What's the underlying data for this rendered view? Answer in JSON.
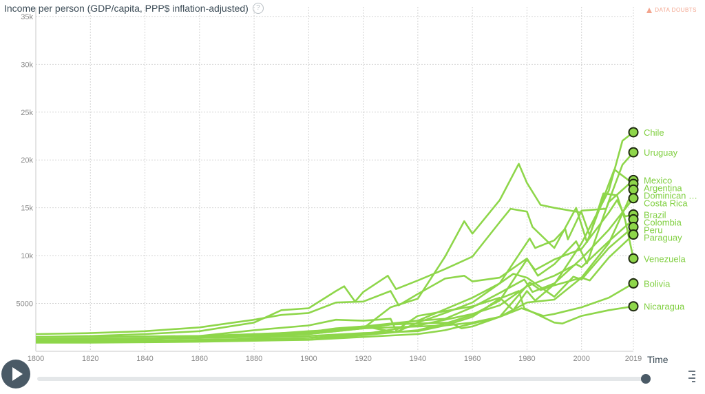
{
  "header": {
    "title": "Income per person (GDP/capita, PPP$ inflation-adjusted)",
    "help_icon": "?",
    "data_doubts": "DATA DOUBTS"
  },
  "axis": {
    "time_label": "Time"
  },
  "colors": {
    "line": "#8ed64a",
    "marker": "#8ed64a",
    "marker_stroke": "#1f2a10",
    "grid": "#d4d4d4",
    "axis_text": "#888888",
    "label": "#7fcf3f"
  },
  "chart_data": {
    "type": "line",
    "title": "Income per person (GDP/capita, PPP$ inflation-adjusted)",
    "xlabel": "Time",
    "ylabel": "",
    "xlim": [
      1800,
      2019
    ],
    "ylim": [
      0,
      36000
    ],
    "x_ticks": [
      1800,
      1820,
      1840,
      1860,
      1880,
      1900,
      1920,
      1940,
      1960,
      1980,
      2000,
      2019
    ],
    "y_ticks": [
      5000,
      10000,
      15000,
      20000,
      25000,
      30000,
      35000
    ],
    "y_tick_labels": [
      "5000",
      "10k",
      "15k",
      "20k",
      "25k",
      "30k",
      "35k"
    ],
    "grid": true,
    "series": [
      {
        "name": "Chile",
        "points": [
          [
            1800,
            1100
          ],
          [
            1820,
            1150
          ],
          [
            1840,
            1300
          ],
          [
            1860,
            1600
          ],
          [
            1880,
            2200
          ],
          [
            1900,
            2700
          ],
          [
            1910,
            3300
          ],
          [
            1920,
            3200
          ],
          [
            1930,
            3400
          ],
          [
            1932,
            2200
          ],
          [
            1940,
            3700
          ],
          [
            1950,
            4200
          ],
          [
            1960,
            4700
          ],
          [
            1970,
            5600
          ],
          [
            1975,
            4300
          ],
          [
            1980,
            6300
          ],
          [
            1983,
            5300
          ],
          [
            1990,
            7000
          ],
          [
            2000,
            11300
          ],
          [
            2010,
            16800
          ],
          [
            2015,
            22000
          ],
          [
            2019,
            22900
          ]
        ]
      },
      {
        "name": "Uruguay",
        "points": [
          [
            1800,
            1800
          ],
          [
            1820,
            1900
          ],
          [
            1840,
            2100
          ],
          [
            1860,
            2500
          ],
          [
            1870,
            2900
          ],
          [
            1880,
            3300
          ],
          [
            1890,
            3800
          ],
          [
            1900,
            4000
          ],
          [
            1910,
            5100
          ],
          [
            1920,
            5200
          ],
          [
            1930,
            6300
          ],
          [
            1933,
            4800
          ],
          [
            1940,
            6000
          ],
          [
            1950,
            7600
          ],
          [
            1957,
            7900
          ],
          [
            1960,
            7300
          ],
          [
            1970,
            7700
          ],
          [
            1980,
            9700
          ],
          [
            1984,
            7900
          ],
          [
            1990,
            9100
          ],
          [
            1998,
            11500
          ],
          [
            2002,
            9200
          ],
          [
            2010,
            15700
          ],
          [
            2015,
            19500
          ],
          [
            2019,
            20800
          ]
        ]
      },
      {
        "name": "Mexico",
        "points": [
          [
            1800,
            1200
          ],
          [
            1820,
            1100
          ],
          [
            1840,
            1100
          ],
          [
            1860,
            1100
          ],
          [
            1880,
            1300
          ],
          [
            1900,
            2000
          ],
          [
            1910,
            2400
          ],
          [
            1920,
            2600
          ],
          [
            1932,
            2000
          ],
          [
            1940,
            3000
          ],
          [
            1950,
            4000
          ],
          [
            1960,
            5100
          ],
          [
            1970,
            7100
          ],
          [
            1981,
            11800
          ],
          [
            1983,
            10800
          ],
          [
            1990,
            11600
          ],
          [
            1994,
            12800
          ],
          [
            1995,
            11700
          ],
          [
            2000,
            14700
          ],
          [
            2009,
            14900
          ],
          [
            2010,
            15600
          ],
          [
            2019,
            17900
          ]
        ]
      },
      {
        "name": "Argentina",
        "points": [
          [
            1800,
            1500
          ],
          [
            1820,
            1600
          ],
          [
            1840,
            1800
          ],
          [
            1860,
            2100
          ],
          [
            1880,
            3000
          ],
          [
            1890,
            4300
          ],
          [
            1900,
            4500
          ],
          [
            1910,
            6300
          ],
          [
            1913,
            6800
          ],
          [
            1917,
            5200
          ],
          [
            1920,
            6200
          ],
          [
            1929,
            7900
          ],
          [
            1932,
            6500
          ],
          [
            1940,
            7400
          ],
          [
            1950,
            8600
          ],
          [
            1960,
            9900
          ],
          [
            1970,
            13500
          ],
          [
            1974,
            14900
          ],
          [
            1980,
            14600
          ],
          [
            1982,
            13000
          ],
          [
            1990,
            10800
          ],
          [
            1998,
            15000
          ],
          [
            2002,
            11400
          ],
          [
            2010,
            17500
          ],
          [
            2012,
            19000
          ],
          [
            2019,
            17500
          ]
        ]
      },
      {
        "name": "Dominican …",
        "points": [
          [
            1800,
            900
          ],
          [
            1820,
            900
          ],
          [
            1840,
            950
          ],
          [
            1860,
            1000
          ],
          [
            1880,
            1100
          ],
          [
            1900,
            1200
          ],
          [
            1920,
            1500
          ],
          [
            1940,
            1800
          ],
          [
            1950,
            2200
          ],
          [
            1960,
            2900
          ],
          [
            1970,
            3600
          ],
          [
            1980,
            5100
          ],
          [
            1990,
            5400
          ],
          [
            2000,
            7700
          ],
          [
            2010,
            11300
          ],
          [
            2019,
            16900
          ]
        ]
      },
      {
        "name": "Costa Rica",
        "points": [
          [
            1800,
            1100
          ],
          [
            1820,
            1150
          ],
          [
            1840,
            1300
          ],
          [
            1860,
            1400
          ],
          [
            1880,
            1700
          ],
          [
            1900,
            2100
          ],
          [
            1920,
            2400
          ],
          [
            1940,
            3200
          ],
          [
            1950,
            3400
          ],
          [
            1960,
            4600
          ],
          [
            1970,
            6100
          ],
          [
            1979,
            7500
          ],
          [
            1982,
            6200
          ],
          [
            1990,
            7100
          ],
          [
            2000,
            9700
          ],
          [
            2010,
            12700
          ],
          [
            2019,
            16000
          ]
        ]
      },
      {
        "name": "Brazil",
        "points": [
          [
            1800,
            1000
          ],
          [
            1820,
            1000
          ],
          [
            1840,
            1050
          ],
          [
            1860,
            1150
          ],
          [
            1880,
            1200
          ],
          [
            1900,
            1200
          ],
          [
            1920,
            1700
          ],
          [
            1940,
            2200
          ],
          [
            1950,
            2900
          ],
          [
            1960,
            3800
          ],
          [
            1970,
            5300
          ],
          [
            1980,
            9600
          ],
          [
            1983,
            8500
          ],
          [
            1990,
            9600
          ],
          [
            2000,
            10700
          ],
          [
            2010,
            14500
          ],
          [
            2013,
            15800
          ],
          [
            2016,
            14100
          ],
          [
            2019,
            14300
          ]
        ]
      },
      {
        "name": "Colombia",
        "points": [
          [
            1800,
            1000
          ],
          [
            1820,
            1050
          ],
          [
            1840,
            1100
          ],
          [
            1860,
            1200
          ],
          [
            1880,
            1300
          ],
          [
            1900,
            1400
          ],
          [
            1920,
            1800
          ],
          [
            1940,
            2700
          ],
          [
            1950,
            3300
          ],
          [
            1960,
            3900
          ],
          [
            1970,
            4800
          ],
          [
            1980,
            6800
          ],
          [
            1990,
            7900
          ],
          [
            1998,
            9100
          ],
          [
            2000,
            8800
          ],
          [
            2010,
            11500
          ],
          [
            2019,
            13800
          ]
        ]
      },
      {
        "name": "Peru",
        "points": [
          [
            1800,
            1100
          ],
          [
            1820,
            1100
          ],
          [
            1840,
            1200
          ],
          [
            1860,
            1600
          ],
          [
            1880,
            1800
          ],
          [
            1900,
            2000
          ],
          [
            1920,
            2600
          ],
          [
            1940,
            3200
          ],
          [
            1950,
            4400
          ],
          [
            1960,
            5600
          ],
          [
            1970,
            7100
          ],
          [
            1975,
            8100
          ],
          [
            1980,
            7700
          ],
          [
            1990,
            5700
          ],
          [
            1997,
            7800
          ],
          [
            2000,
            7500
          ],
          [
            2010,
            10800
          ],
          [
            2019,
            13000
          ]
        ]
      },
      {
        "name": "Paraguay",
        "points": [
          [
            1800,
            1500
          ],
          [
            1820,
            1500
          ],
          [
            1840,
            1550
          ],
          [
            1860,
            1600
          ],
          [
            1880,
            1600
          ],
          [
            1900,
            1800
          ],
          [
            1920,
            2400
          ],
          [
            1940,
            2600
          ],
          [
            1950,
            2700
          ],
          [
            1960,
            3000
          ],
          [
            1970,
            3600
          ],
          [
            1981,
            7200
          ],
          [
            1985,
            6400
          ],
          [
            1990,
            6900
          ],
          [
            2000,
            7700
          ],
          [
            2003,
            7400
          ],
          [
            2010,
            9800
          ],
          [
            2019,
            12200
          ]
        ]
      },
      {
        "name": "Venezuela",
        "points": [
          [
            1800,
            1200
          ],
          [
            1820,
            1150
          ],
          [
            1840,
            1300
          ],
          [
            1860,
            1500
          ],
          [
            1880,
            1800
          ],
          [
            1900,
            1900
          ],
          [
            1920,
            2400
          ],
          [
            1930,
            4600
          ],
          [
            1940,
            5500
          ],
          [
            1950,
            9900
          ],
          [
            1957,
            13600
          ],
          [
            1960,
            12300
          ],
          [
            1970,
            15800
          ],
          [
            1977,
            19600
          ],
          [
            1980,
            17600
          ],
          [
            1985,
            15300
          ],
          [
            1990,
            15000
          ],
          [
            2000,
            14500
          ],
          [
            2003,
            12100
          ],
          [
            2008,
            16500
          ],
          [
            2013,
            16300
          ],
          [
            2016,
            13700
          ],
          [
            2019,
            9700
          ]
        ]
      },
      {
        "name": "Bolivia",
        "points": [
          [
            1800,
            1500
          ],
          [
            1820,
            1500
          ],
          [
            1840,
            1550
          ],
          [
            1860,
            1600
          ],
          [
            1880,
            1700
          ],
          [
            1900,
            1800
          ],
          [
            1920,
            2400
          ],
          [
            1930,
            2800
          ],
          [
            1940,
            2900
          ],
          [
            1952,
            3000
          ],
          [
            1956,
            2400
          ],
          [
            1960,
            2600
          ],
          [
            1970,
            3600
          ],
          [
            1978,
            4500
          ],
          [
            1986,
            3700
          ],
          [
            1990,
            3900
          ],
          [
            2000,
            4600
          ],
          [
            2010,
            5600
          ],
          [
            2019,
            7100
          ]
        ]
      },
      {
        "name": "Nicaragua",
        "points": [
          [
            1800,
            1300
          ],
          [
            1820,
            1300
          ],
          [
            1840,
            1350
          ],
          [
            1860,
            1400
          ],
          [
            1880,
            1500
          ],
          [
            1900,
            1600
          ],
          [
            1920,
            1900
          ],
          [
            1940,
            2100
          ],
          [
            1950,
            2700
          ],
          [
            1960,
            3600
          ],
          [
            1970,
            5500
          ],
          [
            1977,
            6300
          ],
          [
            1979,
            4500
          ],
          [
            1990,
            3000
          ],
          [
            1993,
            2900
          ],
          [
            2000,
            3700
          ],
          [
            2010,
            4300
          ],
          [
            2019,
            4700
          ]
        ]
      }
    ]
  }
}
